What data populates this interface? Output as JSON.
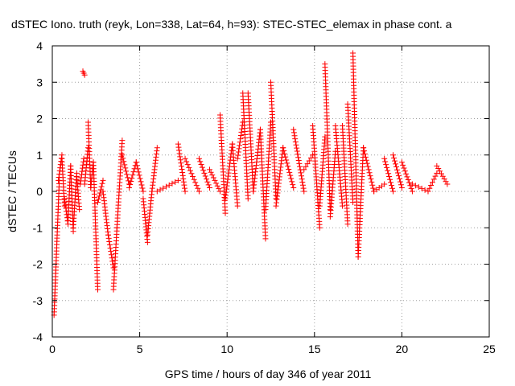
{
  "chart_data": {
    "type": "scatter",
    "title": "dSTEC Iono. truth (reyk, Lon=338, Lat=64, h=93): STEC-STEC_elemax in phase cont. a",
    "xlabel": "GPS time / hours of day 346 of year 2011",
    "ylabel": "dSTEC  / TECUs",
    "xlim": [
      0,
      25
    ],
    "ylim": [
      -4,
      4
    ],
    "xticks": [
      0,
      5,
      10,
      15,
      20,
      25
    ],
    "yticks": [
      -4,
      -3,
      -2,
      -1,
      0,
      1,
      2,
      3,
      4
    ],
    "xtick_labels": [
      "0",
      "5",
      "10",
      "15",
      "20",
      "25"
    ],
    "ytick_labels": [
      "-4",
      "-3",
      "-2",
      "-1",
      "0",
      "1",
      "2",
      "3",
      "4"
    ],
    "grid": true,
    "marker": "+",
    "color": "#ff0000",
    "series": [
      {
        "name": "dSTEC",
        "segments": [
          {
            "x": [
              0.1,
              0.4
            ],
            "y": [
              -3.4,
              0.3
            ]
          },
          {
            "x": [
              0.35,
              0.55
            ],
            "y": [
              0.3,
              1.0
            ]
          },
          {
            "x": [
              0.55,
              0.7
            ],
            "y": [
              0.9,
              -0.4
            ]
          },
          {
            "x": [
              0.7,
              0.9
            ],
            "y": [
              -0.2,
              -0.9
            ]
          },
          {
            "x": [
              0.9,
              1.05
            ],
            "y": [
              -0.8,
              0.7
            ]
          },
          {
            "x": [
              1.05,
              1.2
            ],
            "y": [
              0.7,
              -1.1
            ]
          },
          {
            "x": [
              1.2,
              1.4
            ],
            "y": [
              -1.0,
              0.5
            ]
          },
          {
            "x": [
              1.4,
              1.55
            ],
            "y": [
              0.4,
              -0.5
            ]
          },
          {
            "x": [
              1.6,
              1.8
            ],
            "y": [
              0.2,
              0.9
            ]
          },
          {
            "x": [
              1.75,
              1.85
            ],
            "y": [
              3.3,
              3.2
            ]
          },
          {
            "x": [
              1.85,
              2.05
            ],
            "y": [
              0.2,
              1.2
            ]
          },
          {
            "x": [
              2.05,
              2.2
            ],
            "y": [
              1.9,
              0.1
            ]
          },
          {
            "x": [
              2.2,
              2.35
            ],
            "y": [
              0.1,
              0.8
            ]
          },
          {
            "x": [
              2.35,
              2.6
            ],
            "y": [
              0.8,
              -2.7
            ]
          },
          {
            "x": [
              2.6,
              2.9
            ],
            "y": [
              -0.3,
              0.3
            ]
          },
          {
            "x": [
              2.9,
              3.2
            ],
            "y": [
              0.0,
              -1.2
            ]
          },
          {
            "x": [
              3.2,
              3.5
            ],
            "y": [
              -1.2,
              -2.1
            ]
          },
          {
            "x": [
              3.5,
              3.7
            ],
            "y": [
              -2.7,
              -1.0
            ]
          },
          {
            "x": [
              3.7,
              4.0
            ],
            "y": [
              -1.0,
              1.4
            ]
          },
          {
            "x": [
              4.0,
              4.4
            ],
            "y": [
              1.0,
              0.2
            ]
          },
          {
            "x": [
              4.4,
              4.8
            ],
            "y": [
              0.1,
              0.8
            ]
          },
          {
            "x": [
              4.8,
              5.2
            ],
            "y": [
              0.8,
              0.0
            ]
          },
          {
            "x": [
              5.2,
              5.45
            ],
            "y": [
              -0.2,
              -1.4
            ]
          },
          {
            "x": [
              5.45,
              5.7
            ],
            "y": [
              -1.2,
              0.0
            ]
          },
          {
            "x": [
              5.7,
              6.0
            ],
            "y": [
              0.0,
              1.2
            ]
          },
          {
            "x": [
              6.0,
              7.2
            ],
            "y": [
              0.0,
              0.3
            ]
          },
          {
            "x": [
              7.2,
              7.6
            ],
            "y": [
              1.3,
              0.0
            ]
          },
          {
            "x": [
              7.6,
              8.4
            ],
            "y": [
              0.9,
              0.0
            ]
          },
          {
            "x": [
              8.4,
              9.0
            ],
            "y": [
              0.9,
              0.1
            ]
          },
          {
            "x": [
              9.0,
              9.6
            ],
            "y": [
              0.6,
              0.0
            ]
          },
          {
            "x": [
              9.6,
              9.9
            ],
            "y": [
              2.1,
              -0.6
            ]
          },
          {
            "x": [
              9.9,
              10.3
            ],
            "y": [
              -0.2,
              1.3
            ]
          },
          {
            "x": [
              10.3,
              10.6
            ],
            "y": [
              1.3,
              -0.4
            ]
          },
          {
            "x": [
              10.6,
              10.9
            ],
            "y": [
              0.9,
              1.9
            ]
          },
          {
            "x": [
              10.9,
              11.2
            ],
            "y": [
              2.7,
              -0.2
            ]
          },
          {
            "x": [
              11.2,
              11.5
            ],
            "y": [
              2.7,
              0.0
            ]
          },
          {
            "x": [
              11.5,
              11.9
            ],
            "y": [
              0.0,
              1.7
            ]
          },
          {
            "x": [
              11.9,
              12.2
            ],
            "y": [
              1.7,
              -1.3
            ]
          },
          {
            "x": [
              12.2,
              12.5
            ],
            "y": [
              -0.5,
              1.9
            ]
          },
          {
            "x": [
              12.5,
              12.8
            ],
            "y": [
              3.0,
              -0.2
            ]
          },
          {
            "x": [
              12.8,
              13.2
            ],
            "y": [
              -0.4,
              1.2
            ]
          },
          {
            "x": [
              13.2,
              13.8
            ],
            "y": [
              1.2,
              0.1
            ]
          },
          {
            "x": [
              13.8,
              14.4
            ],
            "y": [
              1.7,
              0.0
            ]
          },
          {
            "x": [
              14.4,
              14.9
            ],
            "y": [
              0.6,
              1.0
            ]
          },
          {
            "x": [
              14.9,
              15.3
            ],
            "y": [
              1.8,
              -1.0
            ]
          },
          {
            "x": [
              15.3,
              15.6
            ],
            "y": [
              -0.4,
              1.5
            ]
          },
          {
            "x": [
              15.6,
              15.9
            ],
            "y": [
              3.5,
              -0.5
            ]
          },
          {
            "x": [
              15.9,
              16.2
            ],
            "y": [
              -0.7,
              1.1
            ]
          },
          {
            "x": [
              16.2,
              16.6
            ],
            "y": [
              1.8,
              -0.4
            ]
          },
          {
            "x": [
              16.6,
              16.9
            ],
            "y": [
              1.8,
              -0.9
            ]
          },
          {
            "x": [
              16.9,
              17.2
            ],
            "y": [
              2.4,
              -0.3
            ]
          },
          {
            "x": [
              17.2,
              17.5
            ],
            "y": [
              3.8,
              -1.8
            ]
          },
          {
            "x": [
              17.5,
              17.8
            ],
            "y": [
              -1.8,
              1.2
            ]
          },
          {
            "x": [
              17.8,
              18.4
            ],
            "y": [
              1.2,
              0.0
            ]
          },
          {
            "x": [
              18.4,
              19.0
            ],
            "y": [
              0.0,
              0.2
            ]
          },
          {
            "x": [
              19.0,
              19.5
            ],
            "y": [
              0.9,
              0.0
            ]
          },
          {
            "x": [
              19.5,
              20.0
            ],
            "y": [
              1.0,
              0.1
            ]
          },
          {
            "x": [
              20.0,
              20.6
            ],
            "y": [
              0.8,
              0.0
            ]
          },
          {
            "x": [
              20.6,
              21.5
            ],
            "y": [
              0.2,
              0.0
            ]
          },
          {
            "x": [
              21.5,
              22.0
            ],
            "y": [
              0.0,
              0.5
            ]
          },
          {
            "x": [
              22.0,
              22.6
            ],
            "y": [
              0.7,
              0.2
            ]
          }
        ]
      }
    ]
  }
}
